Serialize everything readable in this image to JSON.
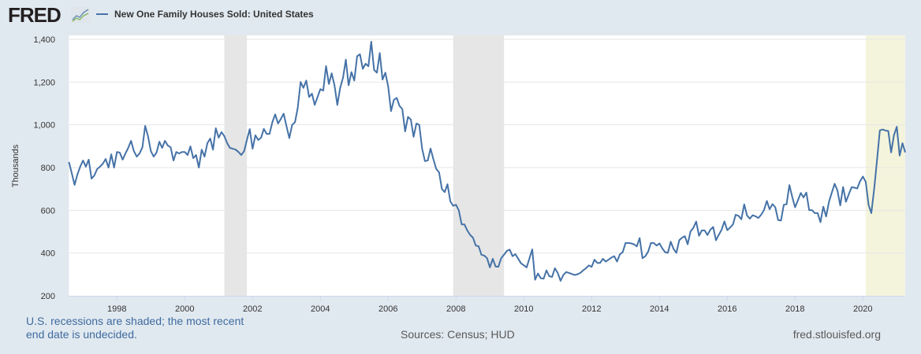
{
  "header": {
    "logo_text": "FRED",
    "logo_icon": "line-chart-icon",
    "legend_label": "New One Family Houses Sold: United States"
  },
  "footer": {
    "recession_note": "U.S. recessions are shaded; the most recent end date is undecided.",
    "sources": "Sources: Census; HUD",
    "site": "fred.stlouisfed.org"
  },
  "colors": {
    "background": "#e1e9f0",
    "line": "#4572a7",
    "recession": "#e6e6e6",
    "current_recession": "#f4f4dc"
  },
  "chart_data": {
    "type": "line",
    "title": "",
    "xlabel": "",
    "ylabel": "Thousands",
    "ylim": [
      200,
      1400
    ],
    "xlim": [
      "1996-08",
      "2021-04"
    ],
    "y_ticks": [
      "200",
      "400",
      "600",
      "800",
      "1,000",
      "1,200",
      "1,400"
    ],
    "x_ticks": [
      "1998",
      "2000",
      "2002",
      "2004",
      "2006",
      "2008",
      "2010",
      "2012",
      "2014",
      "2016",
      "2018",
      "2020"
    ],
    "grid": "horizontal",
    "frequency": "monthly",
    "recessions": [
      {
        "start": "2001-03",
        "end": "2001-11"
      },
      {
        "start": "2007-12",
        "end": "2009-06"
      },
      {
        "start": "2020-02",
        "end": null
      }
    ],
    "series": [
      {
        "name": "New One Family Houses Sold: United States",
        "values_by_year": {
          "1996": [
            null,
            null,
            null,
            null,
            null,
            null,
            null,
            826,
            774,
            719,
            767,
            804
          ],
          "1997": [
            833,
            804,
            837,
            748,
            763,
            793,
            804,
            818,
            840,
            800,
            862,
            800
          ],
          "1998": [
            873,
            870,
            837,
            866,
            892,
            925,
            877,
            851,
            866,
            895,
            995,
            947
          ],
          "1999": [
            877,
            851,
            870,
            921,
            892,
            925,
            903,
            895,
            833,
            873,
            866,
            873
          ],
          "2000": [
            873,
            859,
            899,
            844,
            859,
            800,
            884,
            851,
            914,
            936,
            884,
            984
          ],
          "2001": [
            940,
            966,
            947,
            914,
            892,
            888,
            884,
            873,
            859,
            877,
            929,
            980
          ],
          "2002": [
            888,
            951,
            929,
            940,
            981,
            957,
            957,
            1012,
            1049,
            1006,
            1027,
            1052
          ],
          "2003": [
            994,
            938,
            1000,
            1012,
            1080,
            1200,
            1173,
            1207,
            1130,
            1146,
            1093,
            1130
          ],
          "2004": [
            1167,
            1160,
            1275,
            1191,
            1241,
            1185,
            1093,
            1173,
            1220,
            1305,
            1185,
            1247
          ],
          "2005": [
            1207,
            1321,
            1330,
            1262,
            1286,
            1274,
            1389,
            1257,
            1244,
            1336,
            1212,
            1244
          ],
          "2006": [
            1179,
            1064,
            1117,
            1126,
            1089,
            1074,
            969,
            1037,
            1025,
            944,
            1006,
            1000
          ],
          "2007": [
            889,
            830,
            833,
            889,
            839,
            794,
            778,
            700,
            685,
            722,
            642,
            621
          ],
          "2008": [
            626,
            599,
            534,
            534,
            506,
            485,
            472,
            435,
            432,
            392,
            388,
            376
          ],
          "2009": [
            333,
            373,
            337,
            336,
            376,
            392,
            410,
            416,
            385,
            395,
            374,
            352
          ],
          "2010": [
            343,
            333,
            376,
            417,
            275,
            304,
            282,
            280,
            319,
            292,
            288,
            329
          ],
          "2011": [
            307,
            270,
            298,
            311,
            307,
            302,
            297,
            301,
            307,
            319,
            329,
            342
          ],
          "2012": [
            335,
            369,
            354,
            354,
            373,
            360,
            369,
            379,
            385,
            360,
            394,
            404
          ],
          "2013": [
            447,
            447,
            445,
            441,
            431,
            470,
            376,
            385,
            407,
            447,
            447,
            435
          ],
          "2014": [
            445,
            422,
            404,
            401,
            453,
            419,
            401,
            460,
            472,
            479,
            441,
            501
          ],
          "2015": [
            518,
            547,
            481,
            506,
            506,
            484,
            509,
            522,
            460,
            485,
            509,
            548
          ],
          "2016": [
            507,
            519,
            534,
            579,
            574,
            558,
            628,
            576,
            561,
            577,
            572,
            564
          ],
          "2017": [
            579,
            601,
            644,
            605,
            629,
            614,
            555,
            552,
            626,
            628,
            718,
            663
          ],
          "2018": [
            614,
            647,
            681,
            660,
            683,
            601,
            601,
            587,
            587,
            544,
            617,
            571
          ],
          "2019": [
            640,
            683,
            724,
            693,
            623,
            709,
            640,
            675,
            708,
            706,
            702,
            736
          ],
          "2020": [
            758,
            733,
            626,
            587,
            699,
            834,
            974,
            978,
            973,
            971,
            871,
            951
          ],
          "2021": [
            991,
            856,
            914,
            871,
            null,
            null,
            null,
            null,
            null,
            null,
            null,
            null
          ]
        }
      }
    ]
  }
}
